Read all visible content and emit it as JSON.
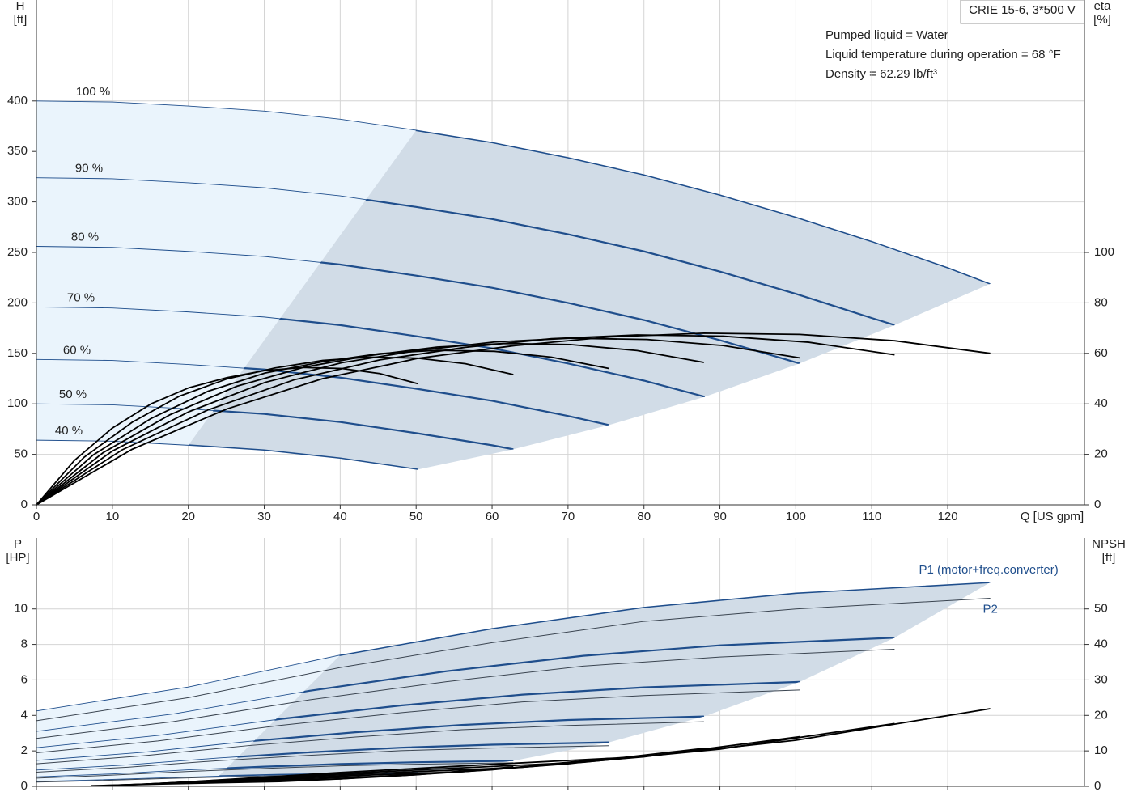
{
  "chart_data": [
    {
      "type": "line",
      "info_box": "CRIE 15-6, 3*500 V",
      "notes": [
        "Pumped liquid = Water",
        "Liquid temperature during operation = 68 °F",
        "Density = 62.29 lb/ft³"
      ],
      "y_label": [
        "H",
        "[ft]"
      ],
      "y2_label": [
        "eta",
        "[%]"
      ],
      "x_label": "Q [US gpm]",
      "xlim": [
        0,
        138
      ],
      "xticks": [
        0,
        10,
        20,
        30,
        40,
        50,
        60,
        70,
        80,
        90,
        100,
        110,
        120
      ],
      "ylim": [
        0,
        500
      ],
      "yticks": [
        0,
        50,
        100,
        150,
        200,
        250,
        300,
        350,
        400
      ],
      "y2lim": [
        0,
        200
      ],
      "y2ticks": [
        0,
        20,
        40,
        60,
        80,
        100
      ],
      "grid": true,
      "series": [
        {
          "name": "100 %",
          "color": "#1f4e8c",
          "x": [
            0,
            10,
            20,
            30,
            40,
            50,
            60,
            70,
            80,
            90,
            100,
            110,
            120,
            125.6
          ],
          "values": [
            400,
            399,
            395,
            390,
            382,
            371,
            359,
            344,
            327,
            307,
            285,
            261,
            235,
            219
          ]
        },
        {
          "name": "90 %",
          "color": "#1f4e8c",
          "x": [
            0,
            10,
            20,
            30,
            40,
            50,
            60,
            70,
            80,
            90,
            100,
            110,
            113
          ],
          "values": [
            324,
            323,
            319,
            314,
            306,
            295,
            283,
            268,
            251,
            231,
            209,
            185,
            178
          ]
        },
        {
          "name": "80 %",
          "color": "#1f4e8c",
          "x": [
            0,
            10,
            20,
            30,
            40,
            50,
            60,
            70,
            80,
            90,
            100.5
          ],
          "values": [
            256,
            255,
            251,
            246,
            238,
            227,
            215,
            200,
            183,
            163,
            140
          ]
        },
        {
          "name": "70 %",
          "color": "#1f4e8c",
          "x": [
            0,
            10,
            20,
            30,
            40,
            50,
            60,
            70,
            80,
            88
          ],
          "values": [
            196,
            195,
            191,
            186,
            178,
            167,
            155,
            140,
            123,
            107
          ]
        },
        {
          "name": "60 %",
          "color": "#1f4e8c",
          "x": [
            0,
            10,
            20,
            30,
            40,
            50,
            60,
            70,
            75.4
          ],
          "values": [
            144,
            143,
            139,
            134,
            126,
            115,
            103,
            88,
            79
          ]
        },
        {
          "name": "50 %",
          "color": "#1f4e8c",
          "x": [
            0,
            10,
            20,
            30,
            40,
            50,
            60,
            62.8
          ],
          "values": [
            100,
            99,
            95,
            90,
            82,
            71,
            59,
            55
          ]
        },
        {
          "name": "40 %",
          "color": "#1f4e8c",
          "x": [
            0,
            10,
            20,
            30,
            40,
            50.2
          ],
          "values": [
            64,
            63,
            59,
            54,
            46,
            35
          ]
        },
        {
          "axis": "y2",
          "color": "#000000",
          "x": [
            0,
            12.6,
            25.1,
            37.7,
            50.2,
            62.8,
            75.4,
            87.9,
            100.5,
            113,
            125.6
          ],
          "values": [
            0,
            22,
            38,
            50,
            58,
            63,
            66.5,
            68,
            67.5,
            65,
            60
          ]
        },
        {
          "axis": "y2",
          "color": "#000000",
          "x": [
            0,
            11.3,
            22.6,
            33.9,
            45.2,
            56.5,
            67.8,
            79.1,
            90.4,
            101.7,
            113
          ],
          "values": [
            0,
            21.8,
            37.6,
            49.5,
            57.4,
            62.4,
            65.8,
            67.3,
            66.8,
            64.4,
            59.4
          ]
        },
        {
          "axis": "y2",
          "color": "#000000",
          "x": [
            0,
            10,
            20.1,
            30.1,
            40.2,
            50.2,
            60.3,
            70.3,
            80.4,
            90.4,
            100.5
          ],
          "values": [
            0,
            21.3,
            36.9,
            48.5,
            56.3,
            61.1,
            64.5,
            66,
            65.5,
            63.1,
            58.2
          ]
        },
        {
          "axis": "y2",
          "color": "#000000",
          "x": [
            0,
            8.8,
            17.6,
            26.4,
            35.2,
            44,
            52.8,
            61.5,
            70.3,
            79.1,
            87.9
          ],
          "values": [
            0,
            20.7,
            35.7,
            47,
            54.5,
            59.2,
            62.5,
            63.9,
            63.5,
            61.1,
            56.4
          ]
        },
        {
          "axis": "y2",
          "color": "#000000",
          "x": [
            0,
            7.5,
            15.1,
            22.6,
            30.1,
            37.7,
            45.2,
            52.8,
            60.3,
            67.8,
            75.4
          ],
          "values": [
            0,
            19.8,
            34.2,
            45,
            52.2,
            56.7,
            59.9,
            61.2,
            60.8,
            58.5,
            54
          ]
        },
        {
          "axis": "y2",
          "color": "#000000",
          "x": [
            0,
            6.3,
            12.6,
            18.8,
            25.1,
            31.4,
            37.7,
            44,
            50.2,
            56.5,
            62.8
          ],
          "values": [
            0,
            18.9,
            32.7,
            43,
            49.9,
            54.2,
            57.2,
            58.5,
            58.1,
            55.9,
            51.6
          ]
        },
        {
          "axis": "y2",
          "color": "#000000",
          "x": [
            0,
            5,
            10,
            15.1,
            20.1,
            25.1,
            30.1,
            35.2,
            40.2,
            45.2,
            50.2
          ],
          "values": [
            0,
            17.6,
            30.4,
            40,
            46.4,
            50.4,
            53.2,
            54.4,
            54,
            52,
            48
          ]
        }
      ]
    },
    {
      "type": "line",
      "y_label": [
        "P",
        "[HP]"
      ],
      "y2_label": [
        "NPSH",
        "[ft]"
      ],
      "annotations": [
        "P1 (motor+freq.converter)",
        "P2"
      ],
      "xlim": [
        0,
        138
      ],
      "xticks": [
        0,
        10,
        20,
        30,
        40,
        50,
        60,
        70,
        80,
        90,
        100,
        110,
        120
      ],
      "ylim": [
        0,
        14
      ],
      "yticks": [
        0,
        2,
        4,
        6,
        8,
        10
      ],
      "y2lim": [
        0,
        70
      ],
      "y2ticks": [
        0,
        10,
        20,
        30,
        40,
        50
      ],
      "grid": true,
      "series": [
        {
          "color": "#1f4e8c",
          "x": [
            0,
            20,
            40,
            60,
            80,
            100,
            125.6
          ],
          "values": [
            4.25,
            5.6,
            7.4,
            8.9,
            10.1,
            10.9,
            11.5
          ]
        },
        {
          "color": "#1f4e8c",
          "x": [
            0,
            18,
            36,
            54,
            72,
            90,
            113
          ],
          "values": [
            3.1,
            4.08,
            5.39,
            6.49,
            7.36,
            7.95,
            8.38
          ]
        },
        {
          "color": "#1f4e8c",
          "x": [
            0,
            16,
            32,
            48,
            64,
            80,
            100.5
          ],
          "values": [
            2.18,
            2.87,
            3.79,
            4.56,
            5.17,
            5.58,
            5.89
          ]
        },
        {
          "color": "#1f4e8c",
          "x": [
            0,
            14,
            28,
            42,
            56,
            70,
            87.9
          ],
          "values": [
            1.46,
            1.92,
            2.54,
            3.05,
            3.46,
            3.74,
            3.94
          ]
        },
        {
          "color": "#1f4e8c",
          "x": [
            0,
            12,
            24,
            36,
            48,
            60,
            75.4
          ],
          "values": [
            0.92,
            1.21,
            1.6,
            1.92,
            2.18,
            2.35,
            2.48
          ]
        },
        {
          "color": "#1f4e8c",
          "x": [
            0,
            10,
            20,
            30,
            40,
            50,
            62.8
          ],
          "values": [
            0.53,
            0.7,
            0.93,
            1.11,
            1.26,
            1.36,
            1.44
          ]
        },
        {
          "color": "#1f4e8c",
          "x": [
            0,
            8,
            16,
            24,
            32,
            40,
            50.2
          ],
          "values": [
            0.27,
            0.36,
            0.47,
            0.57,
            0.65,
            0.7,
            0.74
          ]
        },
        {
          "color": "#3a4450",
          "x": [
            0,
            20,
            40,
            60,
            80,
            100,
            125.6
          ],
          "values": [
            3.7,
            5.0,
            6.7,
            8.1,
            9.3,
            10.0,
            10.6
          ]
        },
        {
          "color": "#3a4450",
          "x": [
            0,
            18,
            36,
            54,
            72,
            90,
            113
          ],
          "values": [
            2.7,
            3.65,
            4.88,
            5.9,
            6.78,
            7.29,
            7.73
          ]
        },
        {
          "color": "#3a4450",
          "x": [
            0,
            16,
            32,
            48,
            64,
            80,
            100.5
          ],
          "values": [
            1.89,
            2.56,
            3.43,
            4.15,
            4.76,
            5.12,
            5.43
          ]
        },
        {
          "color": "#3a4450",
          "x": [
            0,
            14,
            28,
            42,
            56,
            70,
            87.9
          ],
          "values": [
            1.27,
            1.72,
            2.3,
            2.78,
            3.19,
            3.43,
            3.64
          ]
        },
        {
          "color": "#3a4450",
          "x": [
            0,
            12,
            24,
            36,
            48,
            60,
            75.4
          ],
          "values": [
            0.8,
            1.08,
            1.45,
            1.75,
            2.01,
            2.16,
            2.29
          ]
        },
        {
          "color": "#3a4450",
          "x": [
            0,
            10,
            20,
            30,
            40,
            50,
            62.8
          ],
          "values": [
            0.46,
            0.63,
            0.84,
            1.01,
            1.16,
            1.25,
            1.33
          ]
        },
        {
          "color": "#3a4450",
          "x": [
            0,
            8,
            16,
            24,
            32,
            40,
            50.2
          ],
          "values": [
            0.24,
            0.32,
            0.43,
            0.52,
            0.6,
            0.64,
            0.68
          ]
        },
        {
          "axis": "y2",
          "color": "#000000",
          "x": [
            18,
            40,
            60,
            80,
            100,
            125.6
          ],
          "values": [
            1,
            3.9,
            6.2,
            8.4,
            13,
            21.9
          ]
        },
        {
          "axis": "y2",
          "color": "#000000",
          "x": [
            16.2,
            36,
            54,
            72,
            90,
            113
          ],
          "values": [
            0.81,
            3.16,
            5.02,
            6.8,
            10.5,
            17.7
          ]
        },
        {
          "axis": "y2",
          "color": "#000000",
          "x": [
            14.4,
            32,
            48,
            64,
            80,
            100.5
          ],
          "values": [
            0.64,
            2.5,
            3.97,
            5.38,
            8.32,
            14
          ]
        },
        {
          "axis": "y2",
          "color": "#000000",
          "x": [
            12.6,
            28,
            42,
            56,
            70,
            87.9
          ],
          "values": [
            0.49,
            1.91,
            3.04,
            4.12,
            6.37,
            10.7
          ]
        },
        {
          "axis": "y2",
          "color": "#000000",
          "x": [
            10.8,
            24,
            36,
            48,
            60,
            75.4
          ],
          "values": [
            0.36,
            1.4,
            2.23,
            3.02,
            4.68,
            7.9
          ]
        },
        {
          "axis": "y2",
          "color": "#000000",
          "x": [
            9,
            20,
            30,
            40,
            50,
            62.8
          ],
          "values": [
            0.25,
            0.98,
            1.55,
            2.1,
            3.25,
            5.5
          ]
        },
        {
          "axis": "y2",
          "color": "#000000",
          "x": [
            7.2,
            16,
            24,
            32,
            40,
            50.2
          ],
          "values": [
            0.16,
            0.62,
            0.99,
            1.34,
            2.08,
            3.5
          ]
        }
      ]
    }
  ]
}
